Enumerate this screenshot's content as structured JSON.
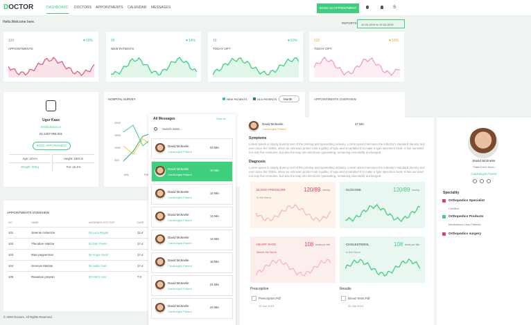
{
  "nav": {
    "logo": "DOCTOR",
    "links": [
      "DASHBOARD",
      "DOCTORS",
      "APPOINTMENTS",
      "CALENDAR",
      "MESSAGES"
    ],
    "button": "MAKE AN APPOINTMENT",
    "user_initial": "S"
  },
  "greeting": "Hello,Welcome here.",
  "reports": {
    "label": "REPORTS:",
    "range": "10-04-2019 to 10-04-2019"
  },
  "stats": [
    {
      "value": "120",
      "change": "▼60%",
      "label": "APPOINTMENTS"
    },
    {
      "value": "00",
      "change": "▼14%",
      "label": "NEW PATIENTS"
    },
    {
      "value": "10",
      "change": "▼50%",
      "label": "TODAY OPT"
    },
    {
      "value": "120",
      "change": "▼10%",
      "label": "TODAY OPT"
    }
  ],
  "profile": {
    "name": "Ugur Kaas",
    "email": "test@doctor.co",
    "phone": "01-1207-004-321",
    "button": "BOOK APPOINTMENT",
    "facts": [
      [
        "Age: 34Yrs",
        "Height: 180Cm"
      ],
      [
        "Weight: 60Kg",
        "Fat: 15.4%"
      ]
    ]
  },
  "survey": {
    "title": "HOSPITAL SURVEY",
    "legend": [
      "NEW PATIENTS",
      "OLD PATIENTS"
    ],
    "period": "Month",
    "yticks": [
      "2000",
      "1500",
      "1000",
      "500"
    ],
    "xticks": [
      "JAN",
      "FEB"
    ]
  },
  "overview_card": {
    "title": "APPOINTMENTS OVERVIEW"
  },
  "table": {
    "title": "APPOINTMENTS OVERVIEW",
    "headers": [
      "NO",
      "NAME",
      "ASSIGNED DOCTOR",
      "DATE"
    ],
    "rows": [
      [
        "101",
        "Jeannie mckenzie",
        "Dr.Luca Bogan",
        "12.4"
      ],
      [
        "102",
        "Theodore Hatche",
        "Dr.Dan Freels",
        "17.4"
      ],
      [
        "103",
        "Maci pepperman",
        "Dr.Angie Hood",
        "17.4"
      ],
      [
        "104",
        "Genevie Marlow",
        "Dr.Jadie Cole",
        "17.4"
      ],
      [
        "105",
        "Ravanian prejean",
        "Dr.Harry ross",
        "7.0"
      ]
    ]
  },
  "footer": "© 2020 Doctors. All Rights Reserved",
  "messages": {
    "title": "All Messages",
    "view_all": "View all",
    "search": "Search name...",
    "items": [
      {
        "name": "David Mcknelie",
        "role": "Cardiologist Patient",
        "time": "04 Min"
      },
      {
        "name": "David Mcknelie",
        "role": "Cardiologist Patient",
        "time": "10 Min"
      },
      {
        "name": "David Mcknelie",
        "role": "Cardiologist Patient",
        "time": "12 Min"
      },
      {
        "name": "David Mcknelie",
        "role": "Cardiologist Patient",
        "time": "14 Min"
      },
      {
        "name": "David Mcknelie",
        "role": "Cardiologist Patient",
        "time": "14 Min"
      },
      {
        "name": "David Mcknelie",
        "role": "Cardiologist Patient",
        "time": "18 Min"
      },
      {
        "name": "David Mcknelie",
        "role": "Cardiologist Patient",
        "time": "21 Min"
      },
      {
        "name": "David Mcknelie",
        "role": "Cardiologist Patient",
        "time": "24 Min"
      }
    ]
  },
  "detail": {
    "name": "David Mcknelie",
    "role": "Cardiologist Patient",
    "time": "47 Min",
    "symptoms_title": "Symptoms",
    "symptoms": "Lorem Ipsum is simply dummy text of the printing and typesetting industry. Lorem Ipsum has been the industry's standard dummy text ever since the 1500s, when an unknown printer took a galley of type and scrambled it to make a type specimen book. It has survived not only five centuries, but also the leap into electronic typesetting, remaining essentially unchanged.",
    "diagnosis_title": "Diagnosis",
    "diagnosis": "Lorem Ipsum is simply dummy text of the printing and typesetting industry. Lorem Ipsum has been the industry's standard dummy text ever since the 1500s, when an unknown printer took a galley of type and scrambled it to make a type specimen book. It has survived not only five centuries, but also the leap into electronic typesetting, remaining essentially unchanged.",
    "vitals": [
      {
        "label": "BLOOD PRESSURE",
        "value": "120/89",
        "unit": "mm/hg",
        "status": "In the Norm"
      },
      {
        "label": "GLUCOSE",
        "value": "120/89",
        "unit": "mm/hg"
      },
      {
        "label": "HEART RATE",
        "value": "108",
        "unit": "beats per Min",
        "status": "Above the Norm"
      },
      {
        "label": "CHOLESTEROL",
        "value": "108",
        "unit": "beats per Min",
        "status": "In the Norm"
      }
    ],
    "files": [
      {
        "title": "Prescription",
        "file": "Prescription.Pdf",
        "date": "20 Jan 2019"
      },
      {
        "title": "Results",
        "file": "Blood-Tests.Pdf",
        "date": "25 Jan 2019"
      }
    ]
  },
  "patient": {
    "name": "David Mcknelie",
    "info": "Patient Info Norm",
    "role": "Cardiologist Patient",
    "speciality_title": "Speciality",
    "specialities": [
      {
        "name": "Orthopedics Specialist",
        "note": "Certified"
      },
      {
        "name": "Orthopedics Products",
        "note": "Medications Less Patients"
      },
      {
        "name": "Orthopedics surgery"
      }
    ]
  }
}
